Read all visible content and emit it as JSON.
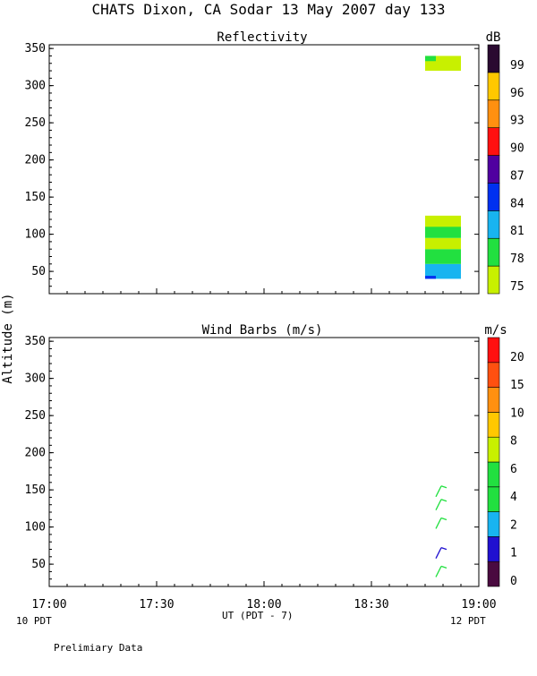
{
  "title": "CHATS Dixon, CA  Sodar  13 May 2007  day 133",
  "ylabel": "Altitude (m)",
  "xlabel": "UT  (PDT - 7)",
  "x_left_note": "10 PDT",
  "x_right_note": "12 PDT",
  "footer": "Prelimiary Data",
  "chart_data": [
    {
      "type": "heatmap",
      "title": "Reflectivity",
      "colorbar_label": "dB",
      "colorbar_ticks": [
        "75",
        "78",
        "81",
        "84",
        "87",
        "90",
        "93",
        "96",
        "99"
      ],
      "colorbar_colors": [
        "#c8f000",
        "#22e040",
        "#18b4f0",
        "#0030f0",
        "#5000a0",
        "#ff1010",
        "#ff9010",
        "#ffc800",
        "#2a0a30"
      ],
      "xticks": [
        "17:00",
        "17:30",
        "18:00",
        "18:30",
        "19:00"
      ],
      "yticks": [
        "50",
        "100",
        "150",
        "200",
        "250",
        "300",
        "350"
      ],
      "ylim": [
        20,
        355
      ],
      "xlim_minutes": [
        0,
        120
      ],
      "cells": [
        {
          "t0": 105,
          "t1": 115,
          "z0": 320,
          "z1": 340,
          "color": "#c8f000"
        },
        {
          "t0": 105,
          "t1": 108,
          "z0": 333,
          "z1": 340,
          "color": "#22e040"
        },
        {
          "t0": 105,
          "t1": 115,
          "z0": 40,
          "z1": 60,
          "color": "#18b4f0"
        },
        {
          "t0": 105,
          "t1": 108,
          "z0": 40,
          "z1": 44,
          "color": "#0030f0"
        },
        {
          "t0": 105,
          "t1": 115,
          "z0": 60,
          "z1": 80,
          "color": "#22e040"
        },
        {
          "t0": 105,
          "t1": 115,
          "z0": 80,
          "z1": 95,
          "color": "#c8f000"
        },
        {
          "t0": 105,
          "t1": 115,
          "z0": 95,
          "z1": 112,
          "color": "#22e040"
        },
        {
          "t0": 105,
          "t1": 115,
          "z0": 110,
          "z1": 125,
          "color": "#c8f000"
        }
      ]
    },
    {
      "type": "scatter",
      "title": "Wind Barbs (m/s)",
      "colorbar_label": "m/s",
      "colorbar_ticks": [
        "0",
        "1",
        "2",
        "4",
        "6",
        "8",
        "10",
        "15",
        "20"
      ],
      "colorbar_colors": [
        "#4a0a40",
        "#2010d0",
        "#18b4f0",
        "#22e040",
        "#22e040",
        "#c8f000",
        "#ffc800",
        "#ff9010",
        "#ff5010",
        "#ff1010"
      ],
      "xticks": [
        "17:00",
        "17:30",
        "18:00",
        "18:30",
        "19:00"
      ],
      "yticks": [
        "50",
        "100",
        "150",
        "200",
        "250",
        "300",
        "350"
      ],
      "ylim": [
        20,
        355
      ],
      "barbs": [
        {
          "t": 113,
          "z": 40,
          "color": "#22e040"
        },
        {
          "t": 113,
          "z": 65,
          "color": "#2010d0"
        },
        {
          "t": 113,
          "z": 105,
          "color": "#22e040"
        },
        {
          "t": 113,
          "z": 130,
          "color": "#22e040"
        },
        {
          "t": 113,
          "z": 148,
          "color": "#22e040"
        }
      ]
    }
  ]
}
